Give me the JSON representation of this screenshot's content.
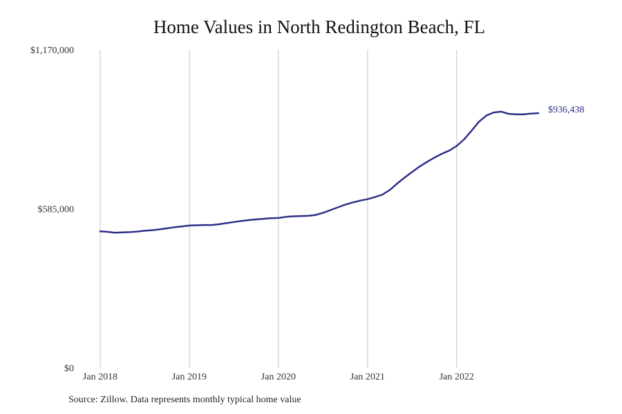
{
  "chart_data": {
    "type": "line",
    "title": "Home Values in North Redington Beach, FL",
    "xlabel": "",
    "ylabel": "",
    "x_tick_labels": [
      "Jan 2018",
      "Jan 2019",
      "Jan 2020",
      "Jan 2021",
      "Jan 2022"
    ],
    "y_tick_labels": [
      "$0",
      "$585,000",
      "$1,170,000"
    ],
    "y_ticks": [
      0,
      585000,
      1170000
    ],
    "ylim": [
      0,
      1170000
    ],
    "x_range": [
      "2018-01",
      "2022-12"
    ],
    "grid": "vertical lines at January of each year",
    "legend": "none",
    "line_color": "#2e2e8a",
    "end_label": "$936,438",
    "series": [
      {
        "x": [
          "2018-01",
          "2018-02",
          "2018-03",
          "2018-04",
          "2018-05",
          "2018-06",
          "2018-07",
          "2018-08",
          "2018-09",
          "2018-10",
          "2018-11",
          "2018-12",
          "2019-01",
          "2019-02",
          "2019-03",
          "2019-04",
          "2019-05",
          "2019-06",
          "2019-07",
          "2019-08",
          "2019-09",
          "2019-10",
          "2019-11",
          "2019-12",
          "2020-01",
          "2020-02",
          "2020-03",
          "2020-04",
          "2020-05",
          "2020-06",
          "2020-07",
          "2020-08",
          "2020-09",
          "2020-10",
          "2020-11",
          "2020-12",
          "2021-01",
          "2021-02",
          "2021-03",
          "2021-04",
          "2021-05",
          "2021-06",
          "2021-07",
          "2021-08",
          "2021-09",
          "2021-10",
          "2021-11",
          "2021-12",
          "2022-01",
          "2022-02",
          "2022-03",
          "2022-04",
          "2022-05",
          "2022-06",
          "2022-07",
          "2022-08",
          "2022-09",
          "2022-10",
          "2022-11",
          "2022-12"
        ],
        "values": [
          502000,
          500000,
          497000,
          498000,
          499000,
          501000,
          504000,
          506000,
          509000,
          513000,
          517000,
          520000,
          523000,
          524000,
          525000,
          525000,
          528000,
          532000,
          536000,
          540000,
          543000,
          546000,
          548000,
          550000,
          551000,
          555000,
          557000,
          558000,
          559000,
          562000,
          570000,
          580000,
          590000,
          600000,
          608000,
          615000,
          620000,
          628000,
          637000,
          654000,
          678000,
          700000,
          720000,
          740000,
          757000,
          773000,
          787000,
          799000,
          816000,
          840000,
          872000,
          905000,
          928000,
          939000,
          942000,
          934000,
          932000,
          932000,
          935000,
          936438
        ]
      }
    ]
  },
  "source": "Source: Zillow. Data represents monthly typical home value"
}
